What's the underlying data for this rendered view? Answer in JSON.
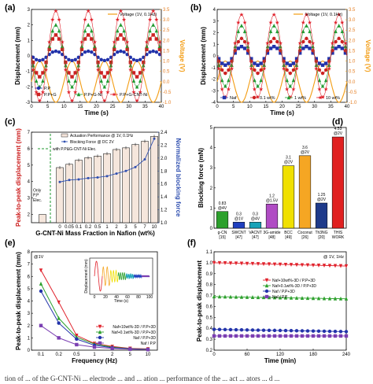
{
  "figure_caption_fragment": "tion of ... of the G-CNT-Ni ... electrode ... and ... ation ... performance of the ... act ... ators ... d ...",
  "colors": {
    "voltage": "#f39c12",
    "pp": "#2233aa",
    "ppg": "#cc2222",
    "ppgni": "#1f9a2f",
    "ppgcntni": "#e0212b",
    "naf": "#2233aa",
    "naf01": "#cc2222",
    "naf1": "#1f9a2f",
    "naf10": "#e0212b",
    "bar_fill": "#f5e6dc",
    "blocking_line": "#3050b0",
    "green_dash": "#1f9a2f"
  },
  "chart_data": [
    {
      "panel": "(a)",
      "type": "line",
      "xlabel": "Time (s)",
      "ylabel": "Displacement (mm)",
      "y2label": "Voltage (V)",
      "xlim": [
        0,
        40
      ],
      "ylim": [
        -3,
        3
      ],
      "y2lim": [
        -1.0,
        3.5
      ],
      "xticks": [
        "0",
        "5",
        "10",
        "15",
        "20",
        "25",
        "30",
        "35",
        "40"
      ],
      "yticks": [
        "-3",
        "-2",
        "-1",
        "0",
        "1",
        "2",
        "3"
      ],
      "y2ticks": [
        "-1.0",
        "-0.5",
        "0.0",
        "0.5",
        "1.0",
        "1.5",
        "2.0",
        "2.5",
        "3.0",
        "3.5"
      ],
      "frequency_hz": 0.1,
      "voltage_series": {
        "name": "Voltage (1V, 0.1Hz)",
        "amplitude": 1.0
      },
      "series": [
        {
          "name": "P.P",
          "amplitude": 0.3,
          "marker": "circle"
        },
        {
          "name": "P.P+G",
          "amplitude": 1.35,
          "marker": "square"
        },
        {
          "name": "P.P+G-Ni",
          "amplitude": 2.0,
          "marker": "triangle"
        },
        {
          "name": "P.P+G-CNT-Ni",
          "amplitude": 2.9,
          "marker": "star"
        }
      ]
    },
    {
      "panel": "(b)",
      "type": "line",
      "xlabel": "Time (s)",
      "ylabel": "Displacement (mm)",
      "y2label": "Voltage (V)",
      "xlim": [
        0,
        40
      ],
      "ylim": [
        -4,
        4
      ],
      "y2lim": [
        -1.0,
        3.5
      ],
      "xticks": [
        "0",
        "5",
        "10",
        "15",
        "20",
        "25",
        "30",
        "35",
        "40"
      ],
      "yticks": [
        "-4",
        "-3",
        "-2",
        "-1",
        "0",
        "1",
        "2",
        "3",
        "4"
      ],
      "y2ticks": [
        "-1.0",
        "-0.5",
        "0.0",
        "0.5",
        "1.0",
        "1.5",
        "2.0",
        "2.5",
        "3.0",
        "3.5"
      ],
      "frequency_hz": 0.1,
      "voltage_series": {
        "name": "Voltage (1V, 0.1Hz)",
        "amplitude": 1.0
      },
      "series": [
        {
          "name": "Naf",
          "amplitude": 0.8,
          "marker": "square"
        },
        {
          "name": "0.1 wt%",
          "amplitude": 1.5,
          "marker": "circle"
        },
        {
          "name": "1 wt%",
          "amplitude": 2.6,
          "marker": "triangle"
        },
        {
          "name": "10 wt%",
          "amplitude": 3.55,
          "marker": "star"
        }
      ]
    },
    {
      "panel": "(c)",
      "type": "bar",
      "xlabel": "G-CNT-Ni Mass Fraction in Nafion (wt%)",
      "ylabel": "Peak-to-peak displacement (mm)",
      "y2label": "Normalized blocking force",
      "categories": [
        "0",
        "0.05",
        "0.1",
        "0.2",
        "0.5",
        "1",
        "2",
        "3",
        "5",
        "7",
        "10"
      ],
      "values": [
        4.85,
        5.05,
        5.3,
        5.45,
        5.55,
        5.7,
        5.95,
        6.05,
        6.25,
        6.45,
        6.75
      ],
      "only_pp_value": 2.0,
      "only_pp_label": "Only P.P Elec.",
      "green_label": "with P.P&G-CNT-Ni Elec.",
      "blocking_force": [
        1.63,
        1.66,
        1.67,
        1.69,
        1.7,
        1.72,
        1.76,
        1.8,
        1.86,
        1.98,
        2.3
      ],
      "ylim": [
        1.5,
        7
      ],
      "y2lim": [
        1.0,
        2.4
      ],
      "yticks": [
        "2",
        "3",
        "4",
        "5",
        "6",
        "7"
      ],
      "y2ticks": [
        "1.0",
        "1.2",
        "1.4",
        "1.6",
        "1.8",
        "2.0",
        "2.2",
        "2.4"
      ],
      "legend": [
        "Actuation Performance @ 1V, 0.1Hz",
        "Blocking Force @ DC 2V"
      ]
    },
    {
      "panel": "(d)",
      "type": "bar",
      "ylabel": "Blocking force (mN)",
      "ylim": [
        0,
        5
      ],
      "yticks": [
        "0",
        "1",
        "2",
        "3",
        "4",
        "5"
      ],
      "categories": [
        "g-CN",
        "SWCNT",
        "VACNT",
        "3G-amide",
        "BCC",
        "Coconut",
        "Th3NG",
        "THIS WORK"
      ],
      "refs": [
        "[15]",
        "[47]",
        "[47]",
        "[48]",
        "[49]",
        "[26]",
        "[20]",
        ""
      ],
      "values": [
        0.83,
        0.3,
        0.3,
        1.2,
        3.1,
        3.6,
        1.25,
        4.53
      ],
      "value_labels": [
        "0.83\n@4V",
        "0.3\n@1V",
        "0.3\n@4V",
        "1.2\n@1.5V",
        "3.1\n@2V",
        "3.6\n@2V",
        "1.25\n@2V",
        "4.53\n@2V"
      ],
      "bar_colors": [
        "#2ca02c",
        "#1f3fbf",
        "#17a2b8",
        "#b04cc4",
        "#f0e000",
        "#f5a623",
        "#1e3a8a",
        "#e02020"
      ]
    },
    {
      "panel": "(e)",
      "type": "line",
      "title_note": "@1V",
      "xlabel": "Frequency (Hz)",
      "ylabel": "Peak-to-peak displacement (mm)",
      "categories": [
        "0.1",
        "0.2",
        "0.5",
        "1",
        "2",
        "5",
        "10"
      ],
      "ylim": [
        0,
        8
      ],
      "yticks": [
        "0",
        "1",
        "2",
        "3",
        "4",
        "5",
        "6",
        "7",
        "8"
      ],
      "series": [
        {
          "name": "Naf+10wt%-3D / P.P+3D",
          "values": [
            6.5,
            3.9,
            1.2,
            0.55,
            0.3,
            0.15,
            0.1
          ],
          "marker": "triangle-down"
        },
        {
          "name": "Naf+0.1wt%-3D / P.P+3D",
          "values": [
            5.4,
            2.6,
            1.05,
            0.5,
            0.25,
            0.12,
            0.08
          ],
          "marker": "triangle"
        },
        {
          "name": "Naf / P.P+3D",
          "values": [
            4.8,
            2.2,
            0.9,
            0.4,
            0.2,
            0.1,
            0.06
          ],
          "marker": "circle"
        },
        {
          "name": "Naf / P.P",
          "values": [
            2.0,
            1.0,
            0.45,
            0.25,
            0.15,
            0.08,
            0.05
          ],
          "marker": "square"
        }
      ],
      "inset": {
        "xlabel": "Time (s)",
        "ylabel": "Displacement (mm)",
        "xticks": [
          "0",
          "20",
          "40",
          "60",
          "80",
          "100"
        ]
      }
    },
    {
      "panel": "(f)",
      "type": "line",
      "title_note": "@ 1V, 1Hz",
      "xlabel": "Time (min)",
      "ylabel": "Peak-to-peak displacement",
      "xlim": [
        0,
        240
      ],
      "ylim": [
        0.2,
        1.1
      ],
      "xticks": [
        "0",
        "60",
        "120",
        "180",
        "240"
      ],
      "yticks": [
        "0.2",
        "0.3",
        "0.4",
        "0.5",
        "0.6",
        "0.7",
        "0.8",
        "0.9",
        "1.0",
        "1.1"
      ],
      "series": [
        {
          "name": "Naf+10wt%-3D / P.P+3D",
          "start": 1.0,
          "end": 0.97,
          "marker": "triangle-down"
        },
        {
          "name": "Naf+0.1wt%-3D / P.P+3D",
          "start": 0.69,
          "end": 0.67,
          "marker": "triangle"
        },
        {
          "name": "Naf / P.P+3D",
          "start": 0.39,
          "end": 0.37,
          "marker": "circle"
        },
        {
          "name": "Naf / P.P",
          "start": 0.33,
          "end": 0.33,
          "marker": "square"
        }
      ]
    }
  ]
}
